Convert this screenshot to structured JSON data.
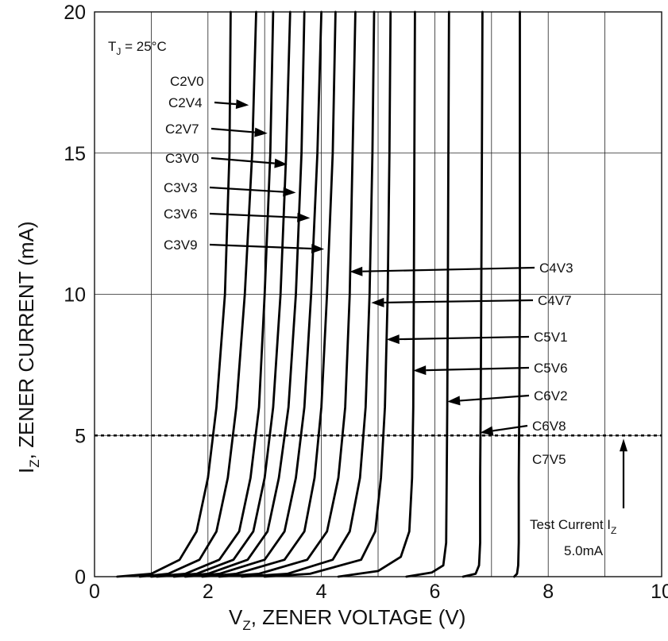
{
  "chart_data": {
    "type": "line",
    "xlabel_main": "V",
    "xlabel_sub": "Z",
    "xlabel_rest": ", ZENER VOLTAGE (V)",
    "ylabel_main": "I",
    "ylabel_sub": "Z",
    "ylabel_rest": ", ZENER CURRENT (mA)",
    "xlim": [
      0,
      10
    ],
    "ylim": [
      0,
      20
    ],
    "x_ticks": [
      "0",
      "2",
      "4",
      "6",
      "8",
      "10"
    ],
    "y_ticks": [
      "0",
      "5",
      "10",
      "15",
      "20"
    ],
    "x_gridlines": [
      1,
      2,
      3,
      4,
      5,
      6,
      7,
      8,
      9
    ],
    "y_gridlines": [
      5,
      10,
      15
    ],
    "grid": true,
    "annotation_tj_main": "T",
    "annotation_tj_sub": "J",
    "annotation_tj_rest": " = 25°C",
    "test_current_main": "Test Current I",
    "test_current_sub": "Z",
    "test_current_value": "5.0mA",
    "test_current_level": 5,
    "series": [
      {
        "name": "C2V0",
        "x": [
          0.4,
          1.0,
          1.5,
          1.8,
          2.0,
          2.15,
          2.3,
          2.38,
          2.4
        ],
        "y": [
          0,
          0.1,
          0.6,
          1.6,
          3.5,
          6.0,
          10.0,
          15.0,
          20.0
        ]
      },
      {
        "name": "C2V4",
        "x": [
          0.8,
          1.3,
          1.85,
          2.15,
          2.35,
          2.5,
          2.65,
          2.78,
          2.85
        ],
        "y": [
          0,
          0.1,
          0.6,
          1.6,
          3.5,
          6.0,
          10.0,
          15.0,
          20.0
        ]
      },
      {
        "name": "C2V7",
        "x": [
          1.0,
          1.6,
          2.2,
          2.55,
          2.75,
          2.9,
          3.0,
          3.1,
          3.15
        ],
        "y": [
          0,
          0.1,
          0.6,
          1.6,
          3.5,
          6.0,
          10.0,
          15.0,
          20.0
        ]
      },
      {
        "name": "C3V0",
        "x": [
          1.1,
          1.8,
          2.45,
          2.8,
          3.0,
          3.15,
          3.28,
          3.38,
          3.45
        ],
        "y": [
          0,
          0.1,
          0.6,
          1.6,
          3.5,
          6.0,
          10.0,
          15.0,
          20.0
        ]
      },
      {
        "name": "C3V3",
        "x": [
          1.4,
          2.0,
          2.7,
          3.05,
          3.25,
          3.42,
          3.55,
          3.65,
          3.7
        ],
        "y": [
          0,
          0.1,
          0.6,
          1.6,
          3.5,
          6.0,
          10.0,
          15.0,
          20.0
        ]
      },
      {
        "name": "C3V6",
        "x": [
          1.6,
          2.2,
          3.0,
          3.35,
          3.55,
          3.7,
          3.82,
          3.93,
          4.0
        ],
        "y": [
          0,
          0.1,
          0.6,
          1.6,
          3.5,
          6.0,
          10.0,
          15.0,
          20.0
        ]
      },
      {
        "name": "C3V9",
        "x": [
          1.9,
          2.5,
          3.35,
          3.7,
          3.88,
          4.0,
          4.1,
          4.2,
          4.25
        ],
        "y": [
          0,
          0.1,
          0.6,
          1.6,
          3.5,
          6.0,
          10.0,
          15.0,
          20.0
        ]
      },
      {
        "name": "C4V3",
        "x": [
          2.2,
          2.9,
          3.75,
          4.1,
          4.3,
          4.42,
          4.5,
          4.55,
          4.6
        ],
        "y": [
          0,
          0.1,
          0.6,
          1.6,
          3.5,
          6.0,
          10.0,
          15.0,
          20.0
        ]
      },
      {
        "name": "C4V7",
        "x": [
          2.6,
          3.4,
          4.2,
          4.5,
          4.68,
          4.78,
          4.85,
          4.9,
          4.93
        ],
        "y": [
          0,
          0.1,
          0.6,
          1.6,
          3.5,
          6.0,
          10.0,
          15.0,
          20.0
        ]
      },
      {
        "name": "C5V1",
        "x": [
          3.0,
          3.8,
          4.7,
          4.95,
          5.05,
          5.12,
          5.17,
          5.2,
          5.22
        ],
        "y": [
          0,
          0.1,
          0.6,
          1.6,
          3.5,
          6.0,
          10.0,
          15.0,
          20.0
        ]
      },
      {
        "name": "C5V6",
        "x": [
          4.3,
          5.0,
          5.4,
          5.55,
          5.6,
          5.62,
          5.63,
          5.64,
          5.65
        ],
        "y": [
          0,
          0.2,
          0.7,
          1.6,
          3.5,
          6.0,
          10.0,
          15.0,
          20.0
        ]
      },
      {
        "name": "C6V2",
        "x": [
          5.5,
          5.95,
          6.15,
          6.2,
          6.21,
          6.22,
          6.23,
          6.24,
          6.25
        ],
        "y": [
          0,
          0.15,
          0.4,
          1.2,
          3.5,
          6.0,
          10.0,
          15.0,
          20.0
        ]
      },
      {
        "name": "C6V8",
        "x": [
          6.5,
          6.72,
          6.78,
          6.8,
          6.8,
          6.81,
          6.82,
          6.83,
          6.84
        ],
        "y": [
          0,
          0.1,
          0.4,
          1.2,
          3.5,
          6.0,
          10.0,
          15.0,
          20.0
        ]
      },
      {
        "name": "C7V5",
        "x": [
          7.4,
          7.45,
          7.47,
          7.48,
          7.48,
          7.49,
          7.5,
          7.5,
          7.5
        ],
        "y": [
          0,
          0.1,
          0.4,
          1.2,
          3.5,
          6.0,
          10.0,
          15.0,
          20.0
        ]
      }
    ],
    "curve_labels": [
      {
        "name": "C2V0",
        "arrow": false
      },
      {
        "name": "C2V4",
        "arrow": true,
        "arrow_to": [
          2.72,
          16.7
        ]
      },
      {
        "name": "C2V7",
        "arrow": true,
        "arrow_to": [
          3.05,
          15.7
        ]
      },
      {
        "name": "C3V0",
        "arrow": true,
        "arrow_to": [
          3.4,
          14.6
        ]
      },
      {
        "name": "C3V3",
        "arrow": true,
        "arrow_to": [
          3.55,
          13.6
        ]
      },
      {
        "name": "C3V6",
        "arrow": true,
        "arrow_to": [
          3.8,
          12.7
        ]
      },
      {
        "name": "C3V9",
        "arrow": true,
        "arrow_to": [
          4.05,
          11.6
        ]
      },
      {
        "name": "C4V3",
        "arrow": true,
        "arrow_to": [
          4.5,
          10.8
        ]
      },
      {
        "name": "C4V7",
        "arrow": true,
        "arrow_to": [
          4.88,
          9.7
        ]
      },
      {
        "name": "C5V1",
        "arrow": true,
        "arrow_to": [
          5.15,
          8.4
        ]
      },
      {
        "name": "C5V6",
        "arrow": true,
        "arrow_to": [
          5.62,
          7.3
        ]
      },
      {
        "name": "C6V2",
        "arrow": true,
        "arrow_to": [
          6.22,
          6.2
        ]
      },
      {
        "name": "C6V8",
        "arrow": true,
        "arrow_to": [
          6.8,
          5.1
        ]
      },
      {
        "name": "C7V5",
        "arrow": false
      }
    ]
  }
}
